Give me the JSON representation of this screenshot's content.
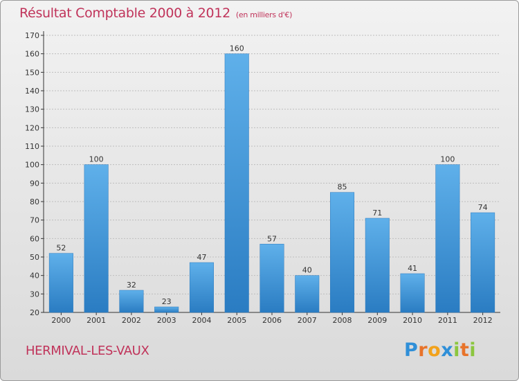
{
  "chart_data": {
    "type": "bar",
    "title": "Résultat Comptable 2000 à 2012",
    "subtitle": "(en milliers d'€)",
    "categories": [
      "2000",
      "2001",
      "2002",
      "2003",
      "2004",
      "2005",
      "2006",
      "2007",
      "2008",
      "2009",
      "2010",
      "2011",
      "2012"
    ],
    "values": [
      52,
      100,
      32,
      23,
      47,
      160,
      57,
      40,
      85,
      71,
      41,
      100,
      74
    ],
    "ylim": [
      20,
      170
    ],
    "yticks": [
      20,
      30,
      40,
      50,
      60,
      70,
      80,
      90,
      100,
      110,
      120,
      130,
      140,
      150,
      160,
      170
    ],
    "grid": true,
    "bar_color": "#3c8fd6"
  },
  "footer": {
    "commune": "HERMIVAL-LES-VAUX",
    "logo_letters": [
      "P",
      "r",
      "o",
      "x",
      "i",
      "t",
      "i"
    ],
    "logo_colors": [
      "#2f8fd8",
      "#e8732a",
      "#f2a21b",
      "#2f8fd8",
      "#8cc63f",
      "#e8732a",
      "#8cc63f"
    ]
  },
  "colors": {
    "title": "#c0335a",
    "axis": "#333333",
    "grid": "#bdbdbd"
  }
}
